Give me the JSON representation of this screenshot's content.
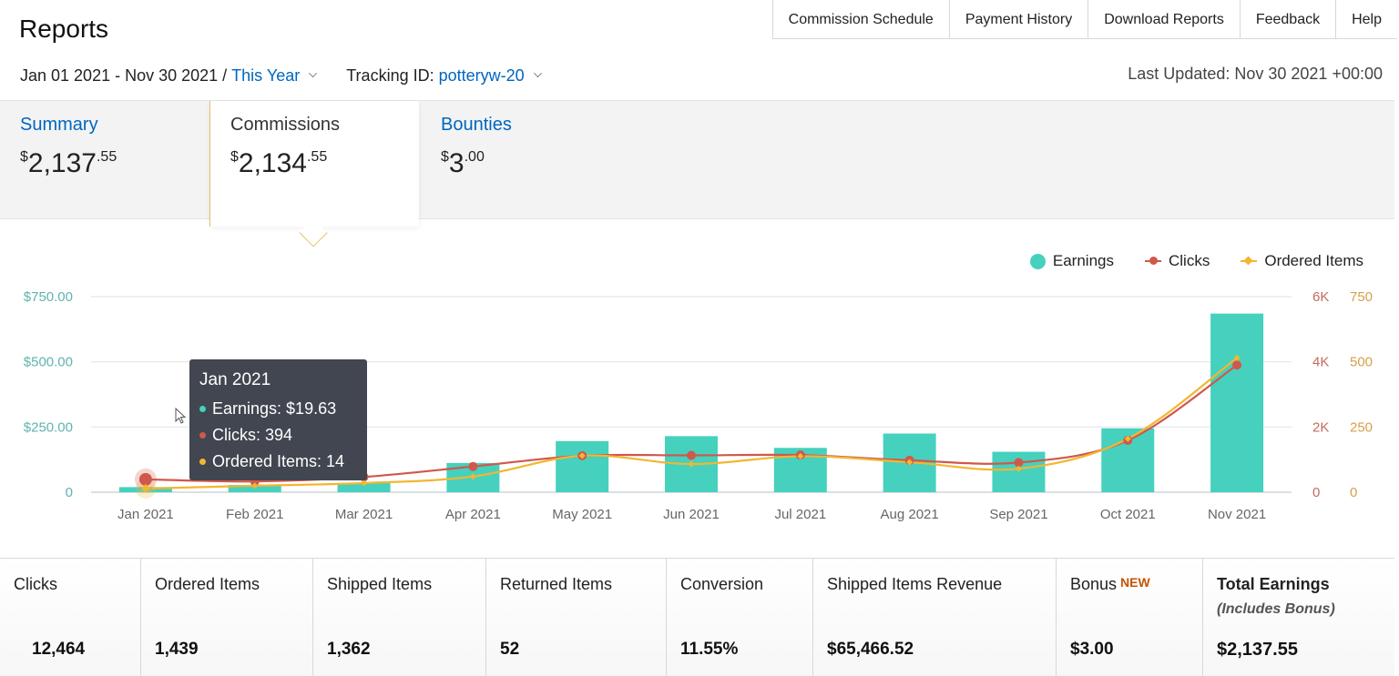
{
  "header": {
    "title": "Reports",
    "nav": [
      "Commission Schedule",
      "Payment History",
      "Download Reports",
      "Feedback",
      "Help"
    ]
  },
  "filters": {
    "date_range": "Jan 01 2021 - Nov 30 2021 / ",
    "period": "This Year",
    "tracking_label": "Tracking ID: ",
    "tracking_id": "potteryw-20",
    "last_updated": "Last Updated: Nov 30 2021 +00:00"
  },
  "tabs": [
    {
      "label": "Summary",
      "currency": "$",
      "whole": "2,137",
      "cents": ".55"
    },
    {
      "label": "Commissions",
      "currency": "$",
      "whole": "2,134",
      "cents": ".55"
    },
    {
      "label": "Bounties",
      "currency": "$",
      "whole": "3",
      "cents": ".00"
    }
  ],
  "legend": {
    "earnings": "Earnings",
    "clicks": "Clicks",
    "ordered": "Ordered Items"
  },
  "colors": {
    "earnings": "#45d1be",
    "clicks": "#d0584b",
    "ordered": "#f2b632",
    "link": "#0066c0"
  },
  "tooltip": {
    "title": "Jan 2021",
    "earnings": "Earnings: $19.63",
    "clicks": "Clicks: 394",
    "ordered": "Ordered Items: 14"
  },
  "chart_data": {
    "type": "bar",
    "categories": [
      "Jan 2021",
      "Feb 2021",
      "Mar 2021",
      "Apr 2021",
      "May 2021",
      "Jun 2021",
      "Jul 2021",
      "Aug 2021",
      "Sep 2021",
      "Oct 2021",
      "Nov 2021"
    ],
    "series": [
      {
        "name": "Earnings",
        "type": "bar",
        "axis": "left",
        "values": [
          19.63,
          28,
          35,
          112,
          196,
          215,
          170,
          225,
          155,
          245,
          685
        ]
      },
      {
        "name": "Clicks",
        "type": "line",
        "axis": "right1",
        "values": [
          394,
          330,
          470,
          790,
          1120,
          1130,
          1140,
          980,
          910,
          1590,
          3900
        ]
      },
      {
        "name": "Ordered Items",
        "type": "line",
        "axis": "right2",
        "values": [
          14,
          25,
          35,
          60,
          140,
          108,
          138,
          115,
          90,
          205,
          515
        ]
      }
    ],
    "y_left": {
      "ticks": [
        "0",
        "$250.00",
        "$500.00",
        "$750.00"
      ],
      "ylim": [
        0,
        750
      ]
    },
    "y_right1": {
      "ticks": [
        "0",
        "2K",
        "4K",
        "6K"
      ],
      "ylim": [
        0,
        6000
      ]
    },
    "y_right2": {
      "ticks": [
        "0",
        "250",
        "500",
        "750"
      ],
      "ylim": [
        0,
        750
      ]
    },
    "grid": true,
    "legend_position": "top-right"
  },
  "stats": [
    {
      "label": "Clicks",
      "value": "12,464"
    },
    {
      "label": "Ordered Items",
      "value": "1,439"
    },
    {
      "label": "Shipped Items",
      "value": "1,362"
    },
    {
      "label": "Returned Items",
      "value": "52"
    },
    {
      "label": "Conversion",
      "value": "11.55%"
    },
    {
      "label": "Shipped Items Revenue",
      "value": "$65,466.52"
    },
    {
      "label": "Bonus",
      "badge": "NEW",
      "value": "$3.00"
    },
    {
      "label": "Total Earnings",
      "sub": "(Includes Bonus)",
      "value": "$2,137.55"
    }
  ]
}
